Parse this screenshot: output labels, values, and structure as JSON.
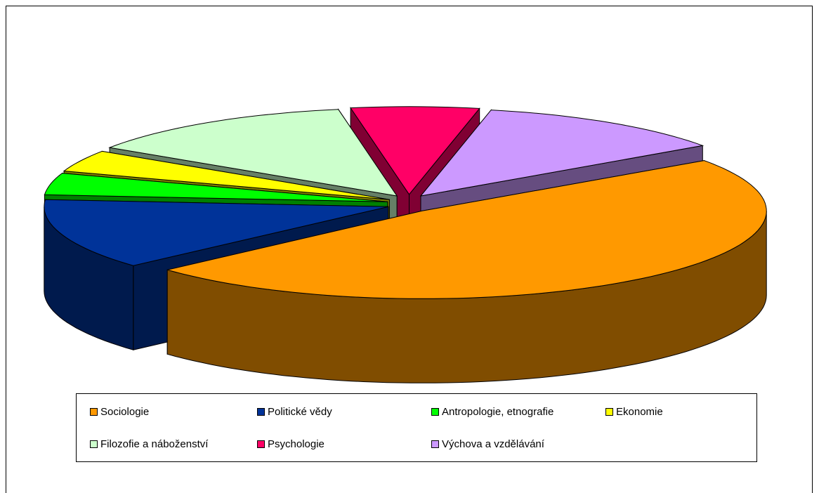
{
  "chart_data": {
    "type": "pie3d",
    "categories": [
      "Sociologie",
      "Politické vědy",
      "Antropologie, etnografie",
      "Ekonomie",
      "Filozofie a náboženství",
      "Psychologie",
      "Výchova a vzdělávání"
    ],
    "values": [
      48,
      13,
      4,
      4,
      13,
      6,
      12
    ],
    "colors": [
      "#ff9900",
      "#003399",
      "#00ff00",
      "#ffff00",
      "#ccffcc",
      "#ff0066",
      "#cc99ff"
    ],
    "start_angle": 55,
    "legend": "bottom"
  }
}
